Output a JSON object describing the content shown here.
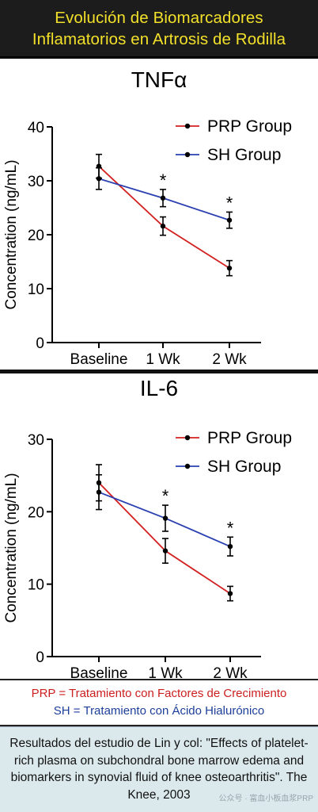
{
  "header": {
    "line1": "Evolución de Biomarcadores",
    "line2": "Inflamatorios en Artrosis de Rodilla"
  },
  "colors": {
    "header_bg": "#1c1c1c",
    "header_text": "#f2e02a",
    "prp": "#d32020",
    "sh": "#2a3fb0",
    "citation_bg": "#dce9ec"
  },
  "chart_data": [
    {
      "type": "line",
      "title": "TNFα",
      "ylabel": "Concentration (ng/mL)",
      "xlabel": "",
      "categories": [
        "Baseline",
        "1 Wk",
        "2 Wk"
      ],
      "ylim": [
        0,
        40
      ],
      "yticks": [
        "0",
        "10",
        "20",
        "30",
        "40"
      ],
      "series": [
        {
          "name": "PRP Group",
          "values": [
            32.7,
            21.6,
            13.8
          ],
          "errors": [
            2.2,
            1.7,
            1.4
          ]
        },
        {
          "name": "SH Group",
          "values": [
            30.4,
            26.8,
            22.7
          ],
          "errors": [
            2.0,
            1.6,
            1.5
          ]
        }
      ],
      "significance": [
        {
          "category": "1 Wk",
          "label": "*"
        },
        {
          "category": "2 Wk",
          "label": "*"
        }
      ]
    },
    {
      "type": "line",
      "title": "IL-6",
      "ylabel": "Concentration (ng/mL)",
      "xlabel": "",
      "categories": [
        "Baseline",
        "1 Wk",
        "2 Wk"
      ],
      "ylim": [
        0,
        30
      ],
      "yticks": [
        "0",
        "10",
        "20",
        "30"
      ],
      "series": [
        {
          "name": "PRP Group",
          "values": [
            24.0,
            14.6,
            8.7
          ],
          "errors": [
            2.5,
            1.7,
            1.0
          ]
        },
        {
          "name": "SH Group",
          "values": [
            22.7,
            19.1,
            15.2
          ],
          "errors": [
            2.4,
            1.8,
            1.3
          ]
        }
      ],
      "significance": [
        {
          "category": "1 Wk",
          "label": "*"
        },
        {
          "category": "2 Wk",
          "label": "*"
        }
      ]
    }
  ],
  "abbreviations": {
    "prp": "PRP = Tratamiento con Factores de Crecimiento",
    "sh": "SH = Tratamiento con Ácido Hialurónico"
  },
  "citation": {
    "text": "Resultados del estudio de Lin y col: \"Effects of platelet-rich plasma on subchondral bone marrow edema and biomarkers in synovial fluid of knee osteoarthritis\". The Knee, 2003",
    "watermark": "公众号 · 富血小板血浆PRP"
  }
}
